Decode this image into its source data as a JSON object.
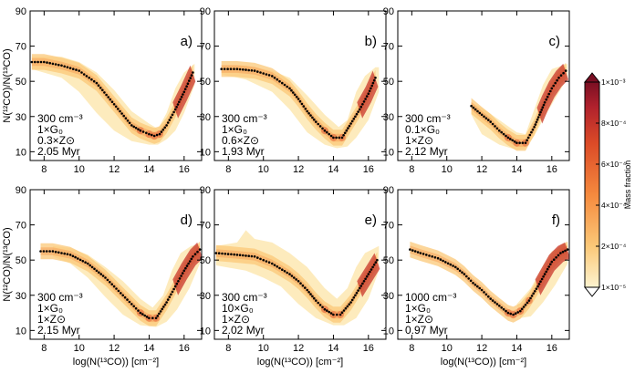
{
  "chart_data": {
    "type": "scatter",
    "xlabel": "log(N(¹³CO)) [cm⁻²]",
    "ylabel": "N(¹²CO)/N(¹³CO)",
    "ylim": [
      5,
      90
    ],
    "yticks": [
      "10",
      "30",
      "50",
      "70",
      "90"
    ],
    "colorbar": {
      "title": "Mass fraction",
      "ticks": [
        "1×10⁻⁵",
        "2×10⁻⁴",
        "4×10⁻⁴",
        "6×10⁻⁴",
        "8×10⁻⁴",
        "1×10⁻³"
      ],
      "colors": [
        "#fdf3cf",
        "#fbc878",
        "#f58a3e",
        "#dc4b27",
        "#b0212d",
        "#7a0f23"
      ]
    },
    "panels": [
      {
        "label": "a)",
        "params": [
          "300 cm⁻³",
          "1×G₀",
          "0.3×Z⊙",
          "2.05 Myr"
        ],
        "xlim": [
          7.2,
          17
        ],
        "xticks": [
          "8",
          "10",
          "12",
          "14",
          "16"
        ],
        "median": [
          [
            7.3,
            61
          ],
          [
            8,
            61
          ],
          [
            9,
            59
          ],
          [
            10,
            56
          ],
          [
            11,
            49
          ],
          [
            12,
            37
          ],
          [
            13,
            25
          ],
          [
            13.5,
            22
          ],
          [
            14,
            20
          ],
          [
            14.3,
            19
          ],
          [
            14.6,
            20
          ],
          [
            15,
            25
          ],
          [
            15.5,
            34
          ],
          [
            16,
            44
          ],
          [
            16.5,
            55
          ]
        ],
        "envelope": [
          [
            7.3,
            64
          ],
          [
            9,
            64
          ],
          [
            10,
            61
          ],
          [
            11,
            55
          ],
          [
            12,
            45
          ],
          [
            13,
            33
          ],
          [
            14,
            26
          ],
          [
            14.5,
            23
          ],
          [
            15,
            32
          ],
          [
            15.5,
            46
          ],
          [
            16,
            55
          ],
          [
            16.6,
            60
          ],
          [
            16.6,
            48
          ],
          [
            16,
            32
          ],
          [
            15.5,
            22
          ],
          [
            15,
            17
          ],
          [
            14.5,
            14
          ],
          [
            14,
            14
          ],
          [
            13,
            16
          ],
          [
            12,
            22
          ],
          [
            11,
            32
          ],
          [
            10,
            44
          ],
          [
            9,
            52
          ],
          [
            7.3,
            57
          ]
        ]
      },
      {
        "label": "b)",
        "params": [
          "300 cm⁻³",
          "1×G₀",
          "0.6×Z⊙",
          "1.93 Myr"
        ],
        "xlim": [
          7.2,
          17
        ],
        "xticks": [
          "8",
          "10",
          "12",
          "14",
          "16"
        ],
        "median": [
          [
            7.6,
            57
          ],
          [
            8.5,
            57
          ],
          [
            9.5,
            56
          ],
          [
            10.5,
            53
          ],
          [
            11.5,
            46
          ],
          [
            12,
            40
          ],
          [
            12.5,
            33
          ],
          [
            13,
            27
          ],
          [
            13.5,
            22
          ],
          [
            14,
            18
          ],
          [
            14.5,
            18
          ],
          [
            15,
            26
          ],
          [
            15.5,
            34
          ],
          [
            16,
            43
          ],
          [
            16.4,
            52
          ]
        ],
        "envelope": [
          [
            7.6,
            59
          ],
          [
            9,
            59
          ],
          [
            10.5,
            56
          ],
          [
            11.5,
            52
          ],
          [
            12.5,
            42
          ],
          [
            13.5,
            31
          ],
          [
            14.3,
            24
          ],
          [
            14.8,
            28
          ],
          [
            15.3,
            44
          ],
          [
            15.8,
            53
          ],
          [
            16.4,
            58
          ],
          [
            16.6,
            58
          ],
          [
            16.6,
            44
          ],
          [
            16,
            28
          ],
          [
            15.3,
            18
          ],
          [
            14.8,
            13
          ],
          [
            14.2,
            12
          ],
          [
            13.5,
            14
          ],
          [
            12.5,
            21
          ],
          [
            11.5,
            34
          ],
          [
            10.5,
            44
          ],
          [
            9,
            51
          ],
          [
            7.6,
            54
          ]
        ]
      },
      {
        "label": "c)",
        "params": [
          "300 cm⁻³",
          "0.1×G₀",
          "1×Z⊙",
          "2.12 Myr"
        ],
        "xlim": [
          7.2,
          17
        ],
        "xticks": [
          "8",
          "10",
          "12",
          "14",
          "16"
        ],
        "median": [
          [
            11.4,
            36
          ],
          [
            12,
            31
          ],
          [
            12.5,
            27
          ],
          [
            13,
            22
          ],
          [
            13.5,
            18
          ],
          [
            14,
            15
          ],
          [
            14.5,
            15
          ],
          [
            15,
            24
          ],
          [
            15.3,
            31
          ],
          [
            15.6,
            38
          ],
          [
            16,
            46
          ],
          [
            16.4,
            52
          ],
          [
            16.8,
            56
          ]
        ],
        "envelope": [
          [
            11.4,
            38
          ],
          [
            12,
            35
          ],
          [
            13,
            28
          ],
          [
            14,
            21
          ],
          [
            14.5,
            20
          ],
          [
            15,
            34
          ],
          [
            15.5,
            48
          ],
          [
            16,
            57
          ],
          [
            16.9,
            60
          ],
          [
            16.9,
            52
          ],
          [
            16.3,
            42
          ],
          [
            15.6,
            30
          ],
          [
            15,
            19
          ],
          [
            14.5,
            12
          ],
          [
            14,
            11
          ],
          [
            13,
            14
          ],
          [
            12,
            20
          ],
          [
            11.4,
            31
          ]
        ]
      },
      {
        "label": "d)",
        "params": [
          "300 cm⁻³",
          "1×G₀",
          "1×Z⊙",
          "2.15 Myr"
        ],
        "xlim": [
          7.2,
          17
        ],
        "xticks": [
          "8",
          "10",
          "12",
          "14",
          "16"
        ],
        "median": [
          [
            7.8,
            55
          ],
          [
            8.5,
            55
          ],
          [
            9.5,
            53
          ],
          [
            10.5,
            48
          ],
          [
            11.5,
            40
          ],
          [
            12,
            35
          ],
          [
            12.5,
            30
          ],
          [
            13,
            25
          ],
          [
            13.5,
            20
          ],
          [
            14,
            17
          ],
          [
            14.4,
            17
          ],
          [
            15,
            26
          ],
          [
            15.5,
            35
          ],
          [
            16,
            44
          ],
          [
            16.5,
            52
          ],
          [
            16.9,
            56
          ]
        ],
        "envelope": [
          [
            8.5,
            58
          ],
          [
            9.5,
            57
          ],
          [
            10.5,
            53
          ],
          [
            11.5,
            46
          ],
          [
            12.5,
            38
          ],
          [
            13.5,
            28
          ],
          [
            14.2,
            23
          ],
          [
            14.8,
            30
          ],
          [
            15.3,
            44
          ],
          [
            15.8,
            54
          ],
          [
            16.4,
            58
          ],
          [
            16.9,
            59
          ],
          [
            16.9,
            48
          ],
          [
            16.3,
            34
          ],
          [
            15.6,
            22
          ],
          [
            15,
            15
          ],
          [
            14.4,
            12
          ],
          [
            13.5,
            13
          ],
          [
            12.5,
            19
          ],
          [
            11.5,
            29
          ],
          [
            10.5,
            40
          ],
          [
            9.5,
            48
          ],
          [
            8.5,
            52
          ]
        ]
      },
      {
        "label": "e)",
        "params": [
          "300 cm⁻³",
          "10×G₀",
          "1×Z⊙",
          "2.02 Myr"
        ],
        "xlim": [
          7.2,
          17
        ],
        "xticks": [
          "8",
          "10",
          "12",
          "14",
          "16"
        ],
        "median": [
          [
            7.3,
            54
          ],
          [
            8.5,
            53
          ],
          [
            9.5,
            52
          ],
          [
            10.5,
            48
          ],
          [
            11.5,
            42
          ],
          [
            12,
            38
          ],
          [
            12.5,
            33
          ],
          [
            13,
            27
          ],
          [
            13.5,
            22
          ],
          [
            14,
            19
          ],
          [
            14.4,
            19
          ],
          [
            15,
            26
          ],
          [
            15.5,
            34
          ],
          [
            16,
            42
          ],
          [
            16.5,
            50
          ]
        ],
        "envelope": [
          [
            7.3,
            58
          ],
          [
            8.5,
            60
          ],
          [
            9,
            67
          ],
          [
            9.5,
            62
          ],
          [
            10.5,
            60
          ],
          [
            11.5,
            54
          ],
          [
            12.5,
            46
          ],
          [
            13.5,
            34
          ],
          [
            14.2,
            28
          ],
          [
            14.8,
            34
          ],
          [
            15.3,
            46
          ],
          [
            15.8,
            54
          ],
          [
            16.6,
            58
          ],
          [
            16.6,
            44
          ],
          [
            16,
            28
          ],
          [
            15.3,
            17
          ],
          [
            14.6,
            13
          ],
          [
            14,
            13
          ],
          [
            13,
            17
          ],
          [
            12,
            25
          ],
          [
            11,
            35
          ],
          [
            10,
            40
          ],
          [
            9,
            44
          ],
          [
            7.3,
            47
          ]
        ]
      },
      {
        "label": "f)",
        "params": [
          "1000 cm⁻³",
          "1×G₀",
          "1×Z⊙",
          "0.97 Myr"
        ],
        "xlim": [
          7.2,
          17
        ],
        "xticks": [
          "8",
          "10",
          "12",
          "14",
          "16"
        ],
        "median": [
          [
            7.9,
            56
          ],
          [
            8.5,
            54
          ],
          [
            9.5,
            51
          ],
          [
            10.5,
            46
          ],
          [
            11,
            42
          ],
          [
            11.5,
            37
          ],
          [
            12,
            33
          ],
          [
            12.5,
            28
          ],
          [
            13,
            24
          ],
          [
            13.5,
            20
          ],
          [
            13.8,
            19
          ],
          [
            14.2,
            21
          ],
          [
            14.7,
            27
          ],
          [
            15.2,
            35
          ],
          [
            15.6,
            42
          ],
          [
            16,
            49
          ],
          [
            16.5,
            54
          ],
          [
            16.9,
            56
          ]
        ],
        "envelope": [
          [
            14,
            25
          ],
          [
            14.8,
            34
          ],
          [
            15.5,
            47
          ],
          [
            16,
            55
          ],
          [
            16.9,
            59
          ],
          [
            16.9,
            48
          ],
          [
            16.2,
            36
          ],
          [
            15.5,
            26
          ],
          [
            14.8,
            18
          ],
          [
            14.2,
            17
          ]
        ]
      }
    ]
  }
}
